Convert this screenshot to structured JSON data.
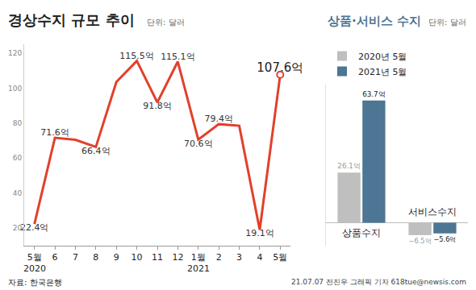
{
  "chart_data": [
    {
      "type": "line",
      "title": "경상수지 규모 추이",
      "subtitle": "단위: 달러",
      "categories": [
        "5월",
        "6",
        "7",
        "8",
        "9",
        "10",
        "11",
        "12",
        "1월",
        "2",
        "3",
        "4",
        "5월"
      ],
      "values": [
        22.4,
        71.6,
        70.5,
        66.4,
        103.5,
        115.5,
        91.8,
        115.1,
        70.6,
        79.4,
        78.5,
        19.1,
        107.6
      ],
      "value_labels": [
        "22.4억",
        "71.6억",
        null,
        "66.4억",
        null,
        "115.5억",
        "91.8억",
        "115.1억",
        "70.6억",
        "79.4억",
        null,
        "19.1억",
        "107.6억"
      ],
      "data_labels": true,
      "color": "#e2402a",
      "ylim": [
        10,
        125
      ],
      "yticks": [
        20,
        40,
        60,
        80,
        100,
        120
      ],
      "grid": false,
      "annotations": [
        {
          "text": "2020",
          "x": 0
        },
        {
          "text": "2021",
          "x": 8
        }
      ]
    },
    {
      "type": "bar",
      "title": "상품·서비스 수지",
      "subtitle": "단위: 달러",
      "categories": [
        "상품수지",
        "서비스수지"
      ],
      "series": [
        {
          "name": "2020년 5월",
          "color": "#bfbfbf",
          "values": [
            26.1,
            -6.5
          ],
          "value_labels": [
            "26.1억",
            "−6.5억"
          ]
        },
        {
          "name": "2021년 5월",
          "color": "#4d7594",
          "values": [
            63.7,
            -5.6
          ],
          "value_labels": [
            "63.7억",
            "−5.6억"
          ]
        }
      ],
      "data_labels": true,
      "ylim": [
        -12,
        72
      ],
      "yticks": [],
      "tick_labels": false,
      "legend": "top left",
      "grid": false
    }
  ],
  "source": "자료: 한국은행",
  "credit": "21.07.07 전진우 그래픽 기자 618tue@newsis.com"
}
